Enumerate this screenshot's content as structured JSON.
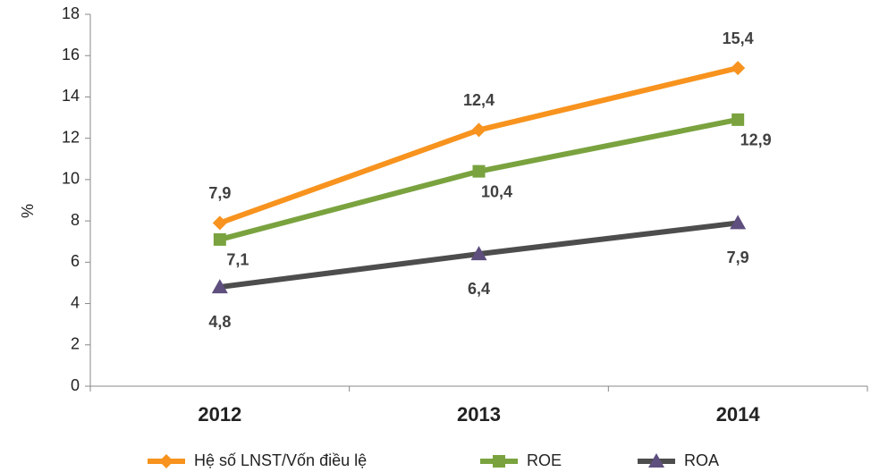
{
  "chart_data": {
    "type": "line",
    "y_label": "%",
    "categories": [
      "2012",
      "2013",
      "2014"
    ],
    "ylim": [
      0,
      18
    ],
    "yticks": [
      0,
      2,
      4,
      6,
      8,
      10,
      12,
      14,
      16,
      18
    ],
    "legend": "bottom",
    "series": [
      {
        "name": "Hệ số LNST/Vốn điều lệ",
        "color": "#f7931e",
        "marker": "diamond",
        "values": [
          7.9,
          12.4,
          15.4
        ],
        "value_labels": [
          "7,9",
          "12,4",
          "15,4"
        ]
      },
      {
        "name": "ROE",
        "color": "#7aa33f",
        "marker": "square",
        "values": [
          7.1,
          10.4,
          12.9
        ],
        "value_labels": [
          "7,1",
          "10,4",
          "12,9"
        ]
      },
      {
        "name": "ROA",
        "color": "#4d4d4d",
        "marker": "triangle",
        "marker_color": "#5e4f7e",
        "values": [
          4.8,
          6.4,
          7.9
        ],
        "value_labels": [
          "4,8",
          "6,4",
          "7,9"
        ]
      }
    ]
  }
}
